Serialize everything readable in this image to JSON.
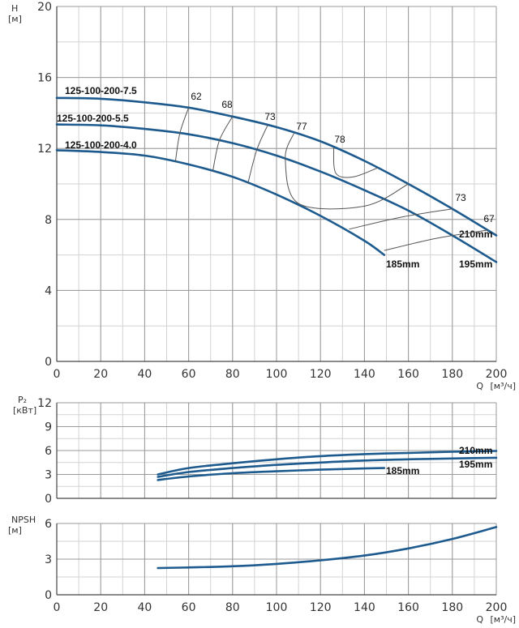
{
  "chart_data": [
    {
      "type": "line",
      "name": "head",
      "ylabel": "H",
      "yunit": "[м]",
      "xlabel": "Q",
      "xunit": "[м³/ч]",
      "xlim": [
        0,
        200
      ],
      "ylim": [
        0,
        20
      ],
      "xticks": [
        0,
        20,
        40,
        60,
        80,
        100,
        120,
        140,
        160,
        180,
        200
      ],
      "yticks": [
        0,
        4,
        8,
        12,
        16,
        20
      ],
      "grid": true,
      "series": [
        {
          "name": "125-100-200-7.5",
          "end_label": "210mm",
          "color": "#1d5a8e",
          "x": [
            0,
            20,
            40,
            60,
            80,
            100,
            120,
            140,
            160,
            180,
            200
          ],
          "y": [
            14.85,
            14.8,
            14.6,
            14.3,
            13.8,
            13.2,
            12.4,
            11.3,
            10.0,
            8.6,
            7.1
          ]
        },
        {
          "name": "125-100-200-5.5",
          "end_label": "195mm",
          "color": "#1d5a8e",
          "x": [
            0,
            20,
            40,
            60,
            80,
            100,
            120,
            140,
            160,
            180,
            200
          ],
          "y": [
            13.35,
            13.3,
            13.1,
            12.8,
            12.3,
            11.6,
            10.7,
            9.65,
            8.5,
            7.1,
            5.6
          ]
        },
        {
          "name": "125-100-200-4.0",
          "end_label": "185mm",
          "color": "#1d5a8e",
          "x": [
            0,
            20,
            40,
            60,
            80,
            100,
            120,
            140,
            149
          ],
          "y": [
            11.9,
            11.8,
            11.6,
            11.1,
            10.4,
            9.4,
            8.2,
            6.8,
            6.0
          ]
        }
      ],
      "efficiency_labels": [
        "62",
        "68",
        "73",
        "77",
        "78",
        "73",
        "67"
      ]
    },
    {
      "type": "line",
      "name": "power",
      "ylabel": "P₂",
      "yunit": "[кВт]",
      "xlim": [
        0,
        200
      ],
      "ylim": [
        0,
        12
      ],
      "xticks": [
        0,
        20,
        40,
        60,
        80,
        100,
        120,
        140,
        160,
        180,
        200
      ],
      "yticks": [
        0,
        3,
        6,
        9,
        12
      ],
      "grid": true,
      "series": [
        {
          "name": "210mm",
          "color": "#1d5a8e",
          "x": [
            46,
            60,
            80,
            100,
            120,
            140,
            160,
            180,
            200
          ],
          "y": [
            3.0,
            3.8,
            4.4,
            4.9,
            5.3,
            5.55,
            5.7,
            5.85,
            5.95
          ]
        },
        {
          "name": "195mm",
          "color": "#1d5a8e",
          "x": [
            46,
            60,
            80,
            100,
            120,
            140,
            160,
            180,
            200
          ],
          "y": [
            2.7,
            3.3,
            3.8,
            4.2,
            4.5,
            4.75,
            4.9,
            5.0,
            5.1
          ]
        },
        {
          "name": "185mm",
          "color": "#1d5a8e",
          "x": [
            46,
            60,
            80,
            100,
            120,
            140,
            149
          ],
          "y": [
            2.3,
            2.75,
            3.15,
            3.4,
            3.6,
            3.75,
            3.8
          ]
        }
      ]
    },
    {
      "type": "line",
      "name": "npsh",
      "ylabel": "NPSH",
      "yunit": "[м]",
      "xlabel": "Q",
      "xunit": "[м³/ч]",
      "xlim": [
        0,
        200
      ],
      "ylim": [
        0,
        6
      ],
      "xticks": [
        0,
        20,
        40,
        60,
        80,
        100,
        120,
        140,
        160,
        180,
        200
      ],
      "yticks": [
        0,
        3,
        6
      ],
      "grid": true,
      "series": [
        {
          "name": "",
          "color": "#1d5a8e",
          "x": [
            46,
            60,
            80,
            100,
            120,
            140,
            160,
            180,
            200
          ],
          "y": [
            2.25,
            2.3,
            2.4,
            2.6,
            2.9,
            3.3,
            3.9,
            4.7,
            5.7
          ]
        }
      ]
    }
  ]
}
